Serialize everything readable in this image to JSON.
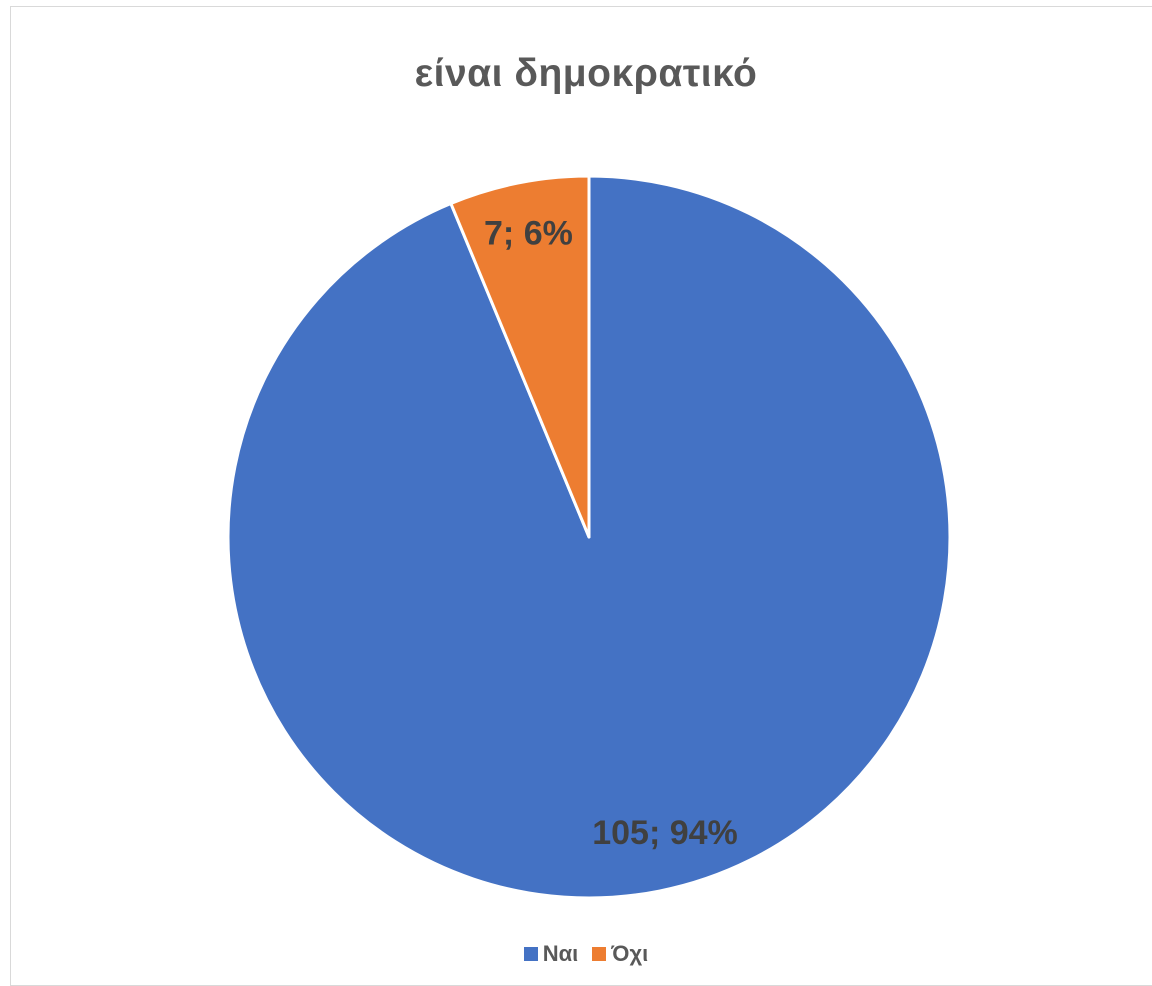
{
  "chart_data": {
    "type": "pie",
    "title": "είναι δημοκρατικό",
    "categories": [
      "Ναι",
      "Όχι"
    ],
    "values": [
      105,
      7
    ],
    "percentages": [
      94,
      6
    ],
    "data_labels": [
      "105; 94%",
      "7; 6%"
    ],
    "colors": [
      "#4472C4",
      "#ED7D31"
    ],
    "legend_position": "bottom"
  }
}
